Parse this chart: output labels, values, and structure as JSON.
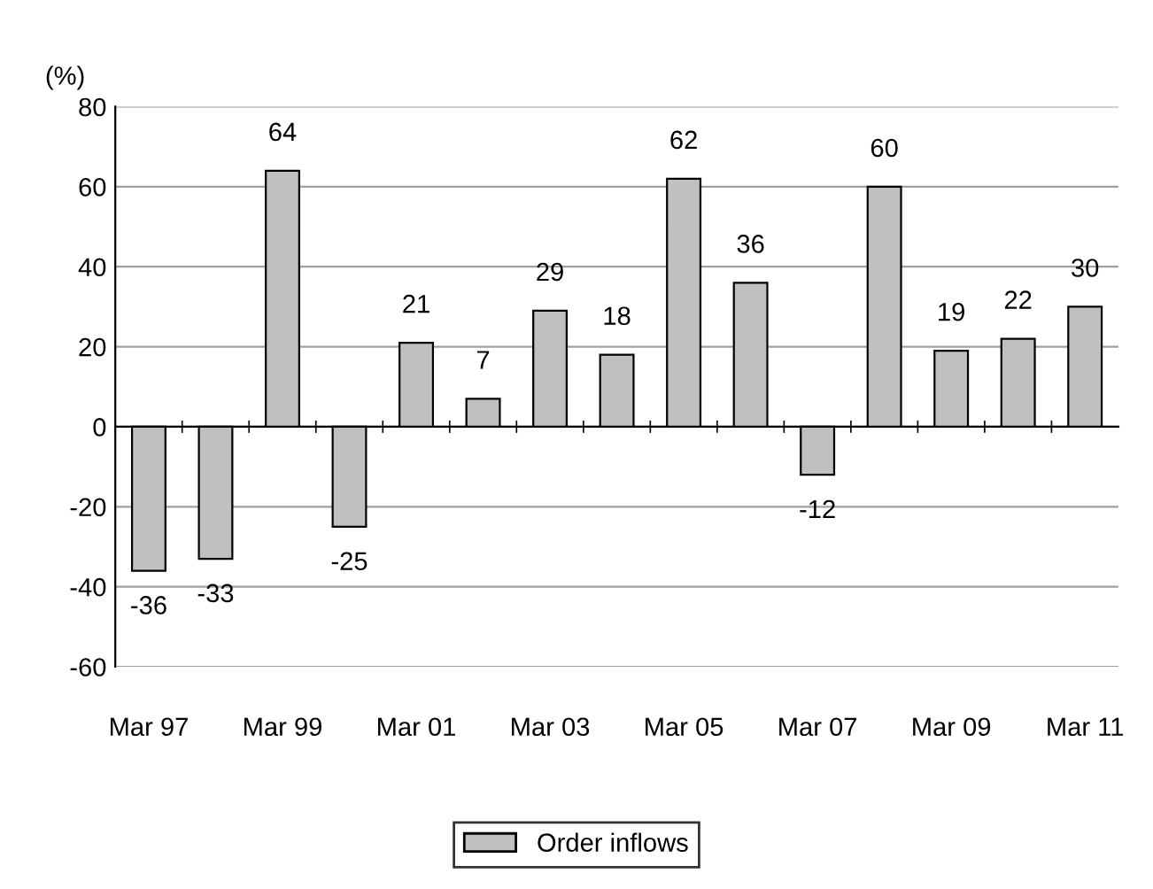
{
  "chart_data": {
    "type": "bar",
    "ylabel": "(%)",
    "categories": [
      "Mar 97",
      null,
      "Mar 99",
      null,
      "Mar 01",
      null,
      "Mar 03",
      null,
      "Mar 05",
      null,
      "Mar 07",
      null,
      "Mar 09",
      null,
      "Mar 11"
    ],
    "series": [
      {
        "name": "Order inflows",
        "color": "#c0c0c0",
        "values": [
          -36,
          -33,
          64,
          -25,
          21,
          7,
          29,
          18,
          62,
          36,
          -12,
          60,
          19,
          22,
          30
        ]
      }
    ],
    "ylim": [
      -60,
      80
    ],
    "yticks": [
      -60,
      -40,
      -20,
      0,
      20,
      40,
      60,
      80
    ],
    "grid": "y",
    "legend": "bottom",
    "data_labels": true
  }
}
